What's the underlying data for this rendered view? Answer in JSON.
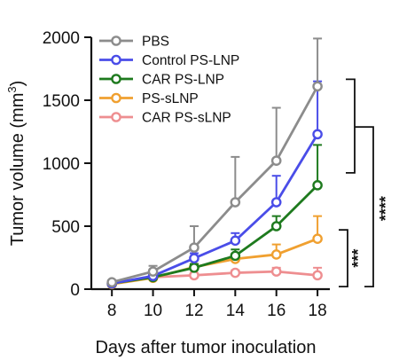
{
  "chart_data": {
    "type": "line",
    "x": [
      8,
      10,
      12,
      14,
      16,
      18
    ],
    "xlabel": "Days after tumor inoculation",
    "ylabel": "Tumor volume (mm",
    "ylabel_superscript": "3",
    "ylabel_close": ")",
    "xlim": [
      7,
      18.6
    ],
    "ylim": [
      0,
      2000
    ],
    "xticks": [
      8,
      10,
      12,
      14,
      16,
      18
    ],
    "yticks": [
      0,
      500,
      1000,
      1500,
      2000
    ],
    "grid": false,
    "legend_position": "top-left",
    "series": [
      {
        "name": "PBS",
        "color": "#8c8c8c",
        "values": [
          55,
          140,
          330,
          690,
          1020,
          1610
        ],
        "error": [
          15,
          45,
          170,
          360,
          420,
          380
        ]
      },
      {
        "name": "Control PS-LNP",
        "color": "#4a4de8",
        "values": [
          45,
          105,
          245,
          385,
          690,
          1230
        ],
        "error": [
          10,
          25,
          40,
          60,
          210,
          420
        ]
      },
      {
        "name": "CAR PS-LNP",
        "color": "#1e7a1e",
        "values": [
          45,
          95,
          170,
          265,
          500,
          825
        ],
        "error": [
          10,
          20,
          30,
          50,
          80,
          320
        ]
      },
      {
        "name": "PS-sLNP",
        "color": "#f0a030",
        "values": [
          40,
          90,
          175,
          240,
          275,
          400
        ],
        "error": [
          8,
          15,
          25,
          40,
          80,
          180
        ]
      },
      {
        "name": "CAR PS-sLNP",
        "color": "#ee8e90",
        "values": [
          45,
          95,
          110,
          130,
          140,
          110
        ],
        "error": [
          8,
          10,
          15,
          20,
          30,
          60
        ]
      }
    ],
    "annotations": [
      {
        "label": "****",
        "from": 1610,
        "to": 825
      },
      {
        "label": "***",
        "from": 400,
        "to": 110
      }
    ]
  }
}
